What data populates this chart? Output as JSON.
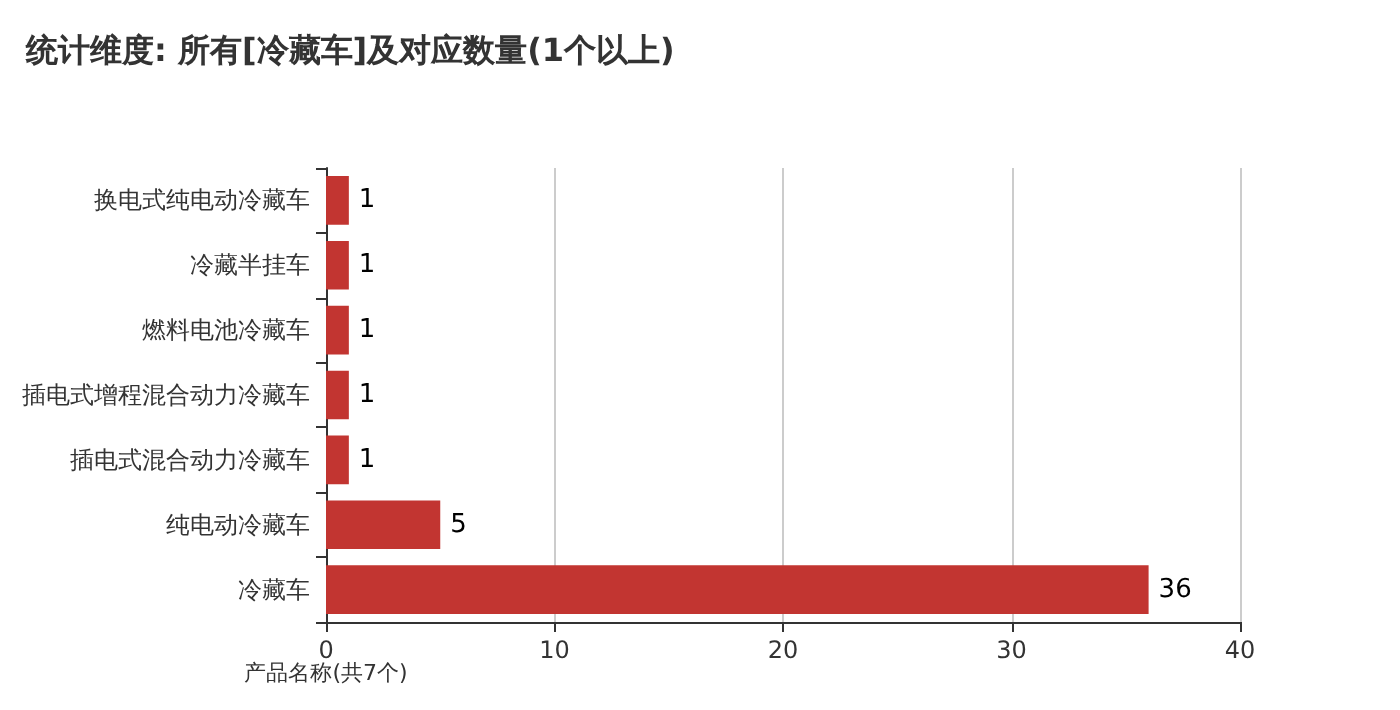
{
  "chart_data": {
    "type": "bar",
    "orientation": "horizontal",
    "title": "统计维度: 所有[冷藏车]及对应数量(1个以上)",
    "ylabel": "产品名称(共7个)",
    "categories": [
      "换电式纯电动冷藏车",
      "冷藏半挂车",
      "燃料电池冷藏车",
      "插电式增程混合动力冷藏车",
      "插电式混合动力冷藏车",
      "纯电动冷藏车",
      "冷藏车"
    ],
    "values": [
      1,
      1,
      1,
      1,
      1,
      5,
      36
    ],
    "color": "#c23531",
    "xlim": [
      0,
      40
    ],
    "xticks": [
      0,
      10,
      20,
      30,
      40
    ],
    "grid": "x",
    "data_labels": true
  }
}
